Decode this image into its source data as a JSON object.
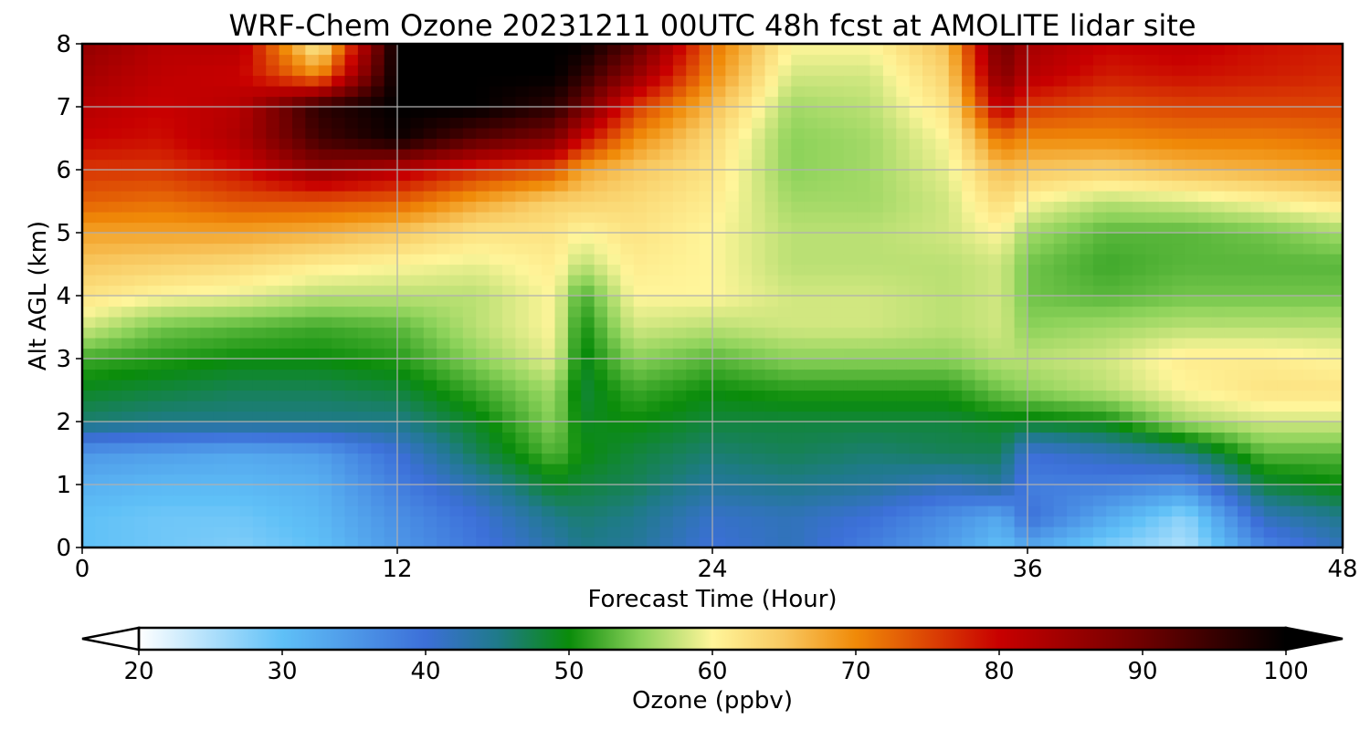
{
  "chart_data": {
    "type": "heatmap",
    "title": "WRF-Chem Ozone  20231211 00UTC 48h fcst at AMOLITE lidar site",
    "xlabel": "Forecast Time (Hour)",
    "ylabel": "Alt AGL (km)",
    "xlim": [
      0,
      48
    ],
    "ylim": [
      0,
      8
    ],
    "x_ticks": [
      "0",
      "12",
      "24",
      "36",
      "48"
    ],
    "y_ticks": [
      "0",
      "1",
      "2",
      "3",
      "4",
      "5",
      "6",
      "7",
      "8"
    ],
    "grid": true,
    "colorbar": {
      "label": "Ozone  (ppbv)",
      "range": [
        20,
        100
      ],
      "ticks": [
        "20",
        "30",
        "40",
        "50",
        "60",
        "70",
        "80",
        "90",
        "100"
      ],
      "extend": "both",
      "color_stops": [
        [
          20,
          "#ffffff"
        ],
        [
          30,
          "#5fc0f7"
        ],
        [
          40,
          "#3c6fd8"
        ],
        [
          45,
          "#1f7a8a"
        ],
        [
          50,
          "#0a8c0a"
        ],
        [
          55,
          "#8cd25a"
        ],
        [
          60,
          "#fff59a"
        ],
        [
          65,
          "#f8c860"
        ],
        [
          70,
          "#f08a08"
        ],
        [
          80,
          "#c80000"
        ],
        [
          90,
          "#6e0000"
        ],
        [
          100,
          "#000000"
        ]
      ]
    },
    "x_hours": [
      0,
      3,
      6,
      9,
      12,
      15,
      18,
      19,
      21,
      24,
      27,
      30,
      33,
      35,
      36,
      39,
      42,
      45,
      48
    ],
    "y_km": [
      0,
      0.5,
      1,
      1.5,
      2,
      2.5,
      3,
      3.5,
      4,
      4.5,
      5,
      5.5,
      6,
      6.5,
      7,
      7.5,
      8
    ],
    "ozone_ppbv_by_altitude": [
      [
        30,
        29,
        28,
        30,
        35,
        39,
        43,
        45,
        44,
        40,
        42,
        38,
        34,
        30,
        33,
        28,
        25,
        37,
        42
      ],
      [
        30,
        29,
        29,
        31,
        36,
        40,
        45,
        46,
        45,
        41,
        42,
        40,
        36,
        33,
        40,
        33,
        27,
        42,
        45
      ],
      [
        32,
        31,
        31,
        32,
        38,
        43,
        49,
        48,
        47,
        44,
        45,
        44,
        42,
        44,
        38,
        38,
        36,
        48,
        50
      ],
      [
        35,
        34,
        33,
        34,
        40,
        47,
        53,
        50,
        48,
        46,
        47,
        46,
        47,
        47,
        40,
        42,
        45,
        53,
        53
      ],
      [
        46,
        45,
        45,
        45,
        45,
        49,
        55,
        49,
        50,
        48,
        48,
        48,
        48,
        49,
        49,
        50,
        56,
        58,
        58
      ],
      [
        49,
        48,
        47,
        47,
        48,
        52,
        56,
        48,
        52,
        50,
        51,
        51,
        51,
        54,
        55,
        57,
        60,
        62,
        62
      ],
      [
        52,
        51,
        50,
        50,
        51,
        55,
        59,
        49,
        55,
        53,
        55,
        55,
        55,
        57,
        57,
        58,
        61,
        61,
        60
      ],
      [
        58,
        54,
        53,
        52,
        53,
        57,
        60,
        50,
        58,
        57,
        58,
        58,
        57,
        58,
        55,
        56,
        57,
        57,
        57
      ],
      [
        62,
        60,
        59,
        57,
        57,
        57,
        60,
        52,
        60,
        60,
        58,
        58,
        57,
        58,
        54,
        53,
        54,
        54,
        54
      ],
      [
        65,
        64,
        63,
        61,
        60,
        59,
        61,
        57,
        61,
        60,
        57,
        57,
        57,
        58,
        54,
        52,
        53,
        53,
        53
      ],
      [
        68,
        68,
        68,
        67,
        65,
        62,
        62,
        60,
        62,
        60,
        57,
        57,
        58,
        60,
        56,
        53,
        53,
        54,
        56
      ],
      [
        73,
        72,
        74,
        74,
        73,
        68,
        64,
        64,
        63,
        61,
        56,
        56,
        58,
        63,
        60,
        57,
        58,
        60,
        62
      ],
      [
        76,
        76,
        79,
        86,
        82,
        77,
        74,
        68,
        65,
        62,
        55,
        56,
        59,
        66,
        65,
        64,
        66,
        67,
        68
      ],
      [
        80,
        79,
        83,
        94,
        99,
        92,
        88,
        80,
        70,
        63,
        55,
        56,
        60,
        72,
        70,
        70,
        71,
        71,
        72
      ],
      [
        82,
        80,
        82,
        96,
        100,
        100,
        96,
        90,
        76,
        66,
        56,
        57,
        62,
        82,
        76,
        74,
        75,
        75,
        75
      ],
      [
        84,
        81,
        80,
        70,
        100,
        100,
        100,
        96,
        86,
        70,
        58,
        58,
        64,
        88,
        82,
        78,
        79,
        78,
        77
      ],
      [
        86,
        82,
        82,
        60,
        100,
        100,
        100,
        100,
        92,
        72,
        60,
        60,
        66,
        90,
        84,
        80,
        81,
        79,
        78
      ]
    ]
  }
}
